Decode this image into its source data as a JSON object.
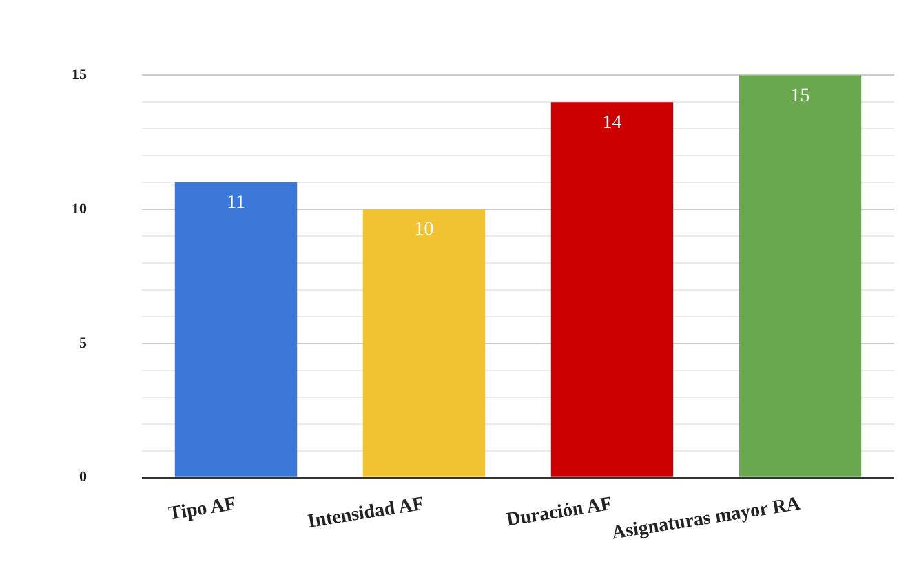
{
  "chart_data": {
    "type": "bar",
    "categories": [
      "Tipo AF",
      "Intensidad AF",
      "Duración AF",
      "Asignaturas mayor RA"
    ],
    "values": [
      11,
      10,
      14,
      15
    ],
    "colors": [
      "#3c78d8",
      "#f1c232",
      "#cc0000",
      "#6aa84f"
    ],
    "ylim": [
      0,
      15
    ],
    "yticks": [
      0,
      {
        "value": 1,
        "label": null
      },
      {
        "value": 2,
        "label": null
      },
      {
        "value": 3,
        "label": null
      },
      {
        "value": 4,
        "label": null
      },
      5,
      {
        "value": 6,
        "label": null
      },
      {
        "value": 7,
        "label": null
      },
      {
        "value": 8,
        "label": null
      },
      {
        "value": 9,
        "label": null
      },
      10,
      {
        "value": 11,
        "label": null
      },
      {
        "value": 12,
        "label": null
      },
      {
        "value": 13,
        "label": null
      },
      {
        "value": 14,
        "label": null
      },
      15
    ],
    "grid": "y",
    "legend": false,
    "data_labels": true
  }
}
